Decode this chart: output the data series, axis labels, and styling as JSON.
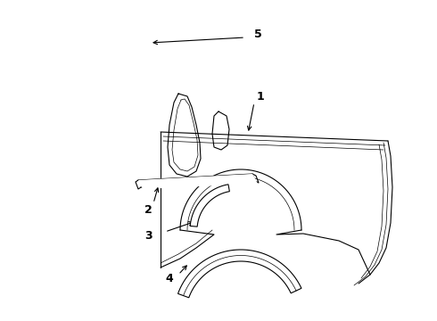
{
  "bg_color": "#ffffff",
  "line_color": "#000000",
  "lw": 0.8,
  "tlw": 0.5,
  "label_fontsize": 9,
  "label_fontweight": "bold",
  "fig_width": 4.9,
  "fig_height": 3.6,
  "dpi": 100
}
